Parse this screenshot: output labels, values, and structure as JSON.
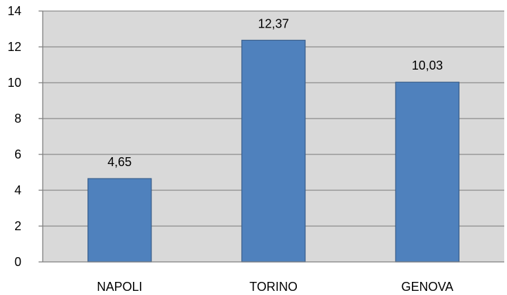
{
  "chart_data": {
    "type": "bar",
    "categories": [
      "NAPOLI",
      "TORINO",
      "GENOVA"
    ],
    "values": [
      4.65,
      12.37,
      10.03
    ],
    "data_labels": [
      "4,65",
      "12,37",
      "10,03"
    ],
    "y_ticks": [
      0,
      2,
      4,
      6,
      8,
      10,
      12,
      14
    ],
    "ylim": [
      0,
      14
    ],
    "title": "",
    "xlabel": "",
    "ylabel": "",
    "grid": true,
    "legend": "none",
    "colors": {
      "bar_fill": "#4F81BD",
      "bar_stroke": "#385D8A",
      "plot_background": "#D9D9D9",
      "gridline": "#8C8C8C",
      "axis": "#7F7F7F"
    }
  }
}
